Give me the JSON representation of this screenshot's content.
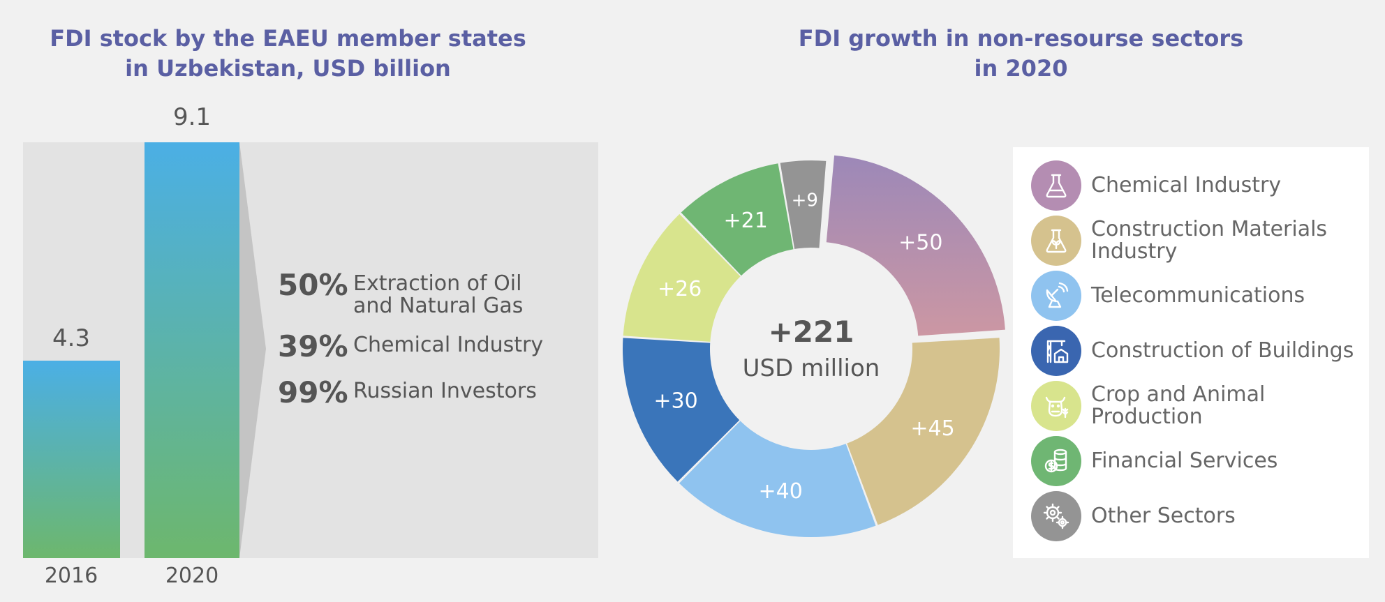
{
  "left_chart": {
    "title_lines": [
      "FDI stock by the EAEU member states",
      "in Uzbekistan, USD billion"
    ],
    "stats": [
      {
        "pct": "50%",
        "label_lines": [
          "Extraction of Oil",
          "and Natural Gas"
        ]
      },
      {
        "pct": "39%",
        "label_lines": [
          "Chemical Industry"
        ]
      },
      {
        "pct": "99%",
        "label_lines": [
          "Russian Investors"
        ]
      }
    ],
    "colors": {
      "bar_top": "#4bafe5",
      "bar_bottom": "#6db76d",
      "panel": "#e3e3e3"
    }
  },
  "right_chart": {
    "title_lines": [
      "FDI growth in non-resourse sectors",
      "in 2020"
    ],
    "center_value": "+221",
    "center_unit": "USD million"
  },
  "chart_data": [
    {
      "type": "bar",
      "categories": [
        "2016",
        "2020"
      ],
      "values": [
        4.3,
        9.1
      ],
      "data_labels": [
        "4.3",
        "9.1"
      ],
      "title": "FDI stock by the EAEU member states in Uzbekistan, USD billion",
      "xlabel": "",
      "ylabel": "",
      "ylim": [
        0,
        9.1
      ]
    },
    {
      "type": "pie",
      "title": "FDI growth in non-resourse sectors in 2020",
      "categories": [
        "Chemical Industry",
        "Construction Materials Industry",
        "Telecommunications",
        "Construction of Buildings",
        "Crop and Animal Production",
        "Financial Services",
        "Other Sectors"
      ],
      "values": [
        50,
        45,
        40,
        30,
        26,
        21,
        9
      ],
      "data_labels": [
        "+50",
        "+45",
        "+40",
        "+30",
        "+26",
        "+21",
        "+9"
      ],
      "colors": [
        "#b28aad",
        "#d5c28e",
        "#8fc3ef",
        "#3a75ba",
        "#d8e48d",
        "#6fb673",
        "#949494"
      ],
      "exploded": [
        "Chemical Industry"
      ],
      "legend_placement": "right",
      "total_label": "+221 USD million"
    }
  ],
  "legend": [
    {
      "label_lines": [
        "Chemical Industry"
      ],
      "icon": "flask-icon",
      "color": "#b48db2"
    },
    {
      "label_lines": [
        "Construction Materials",
        "Industry"
      ],
      "icon": "flask-leaf-icon",
      "color": "#d5c28e"
    },
    {
      "label_lines": [
        "Telecommunications"
      ],
      "icon": "satellite-dish-icon",
      "color": "#8fc3ef"
    },
    {
      "label_lines": [
        "Construction of Buildings"
      ],
      "icon": "crane-building-icon",
      "color": "#3a66b0"
    },
    {
      "label_lines": [
        "Crop and Animal",
        "Production"
      ],
      "icon": "cow-wheat-icon",
      "color": "#d8e48d"
    },
    {
      "label_lines": [
        "Financial Services"
      ],
      "icon": "coins-icon",
      "color": "#6fb673"
    },
    {
      "label_lines": [
        "Other Sectors"
      ],
      "icon": "gears-icon",
      "color": "#949494"
    }
  ]
}
